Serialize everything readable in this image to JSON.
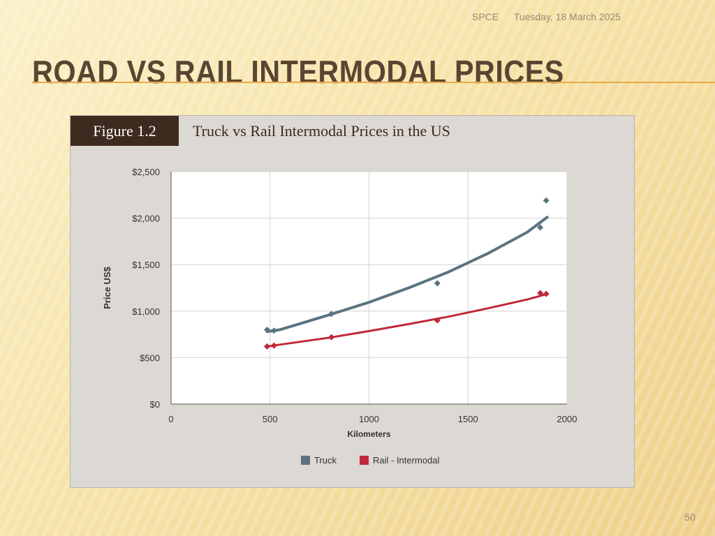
{
  "header": {
    "org": "SPCE",
    "date": "Tuesday, 18 March 2025"
  },
  "slide": {
    "title": "ROAD VS RAIL INTERMODAL PRICES",
    "page_number": "50"
  },
  "figure": {
    "label": "Figure 1.2",
    "title": "Truck vs Rail Intermodal Prices in the US"
  },
  "colors": {
    "truck": "#5b7380",
    "rail": "#c0283a",
    "figure_label_bg": "#3e2a1e"
  },
  "chart_data": {
    "type": "scatter",
    "title": "Truck vs Rail Intermodal Prices in the US",
    "xlabel": "Kilometers",
    "ylabel": "Price US$",
    "xlim": [
      0,
      2000
    ],
    "ylim": [
      0,
      2500
    ],
    "xticks": [
      0,
      500,
      1000,
      1500,
      2000
    ],
    "xtick_labels": [
      "0",
      "500",
      "1000",
      "1500",
      "2000"
    ],
    "yticks": [
      0,
      500,
      1000,
      1500,
      2000,
      2500
    ],
    "ytick_labels": [
      "$0",
      "$500",
      "$1,000",
      "$1,500",
      "$2,000",
      "$2,500"
    ],
    "grid": true,
    "legend_position": "bottom",
    "series": [
      {
        "name": "Truck",
        "color": "#5b7380",
        "points": [
          [
            485,
            800
          ],
          [
            520,
            790
          ],
          [
            810,
            970
          ],
          [
            1345,
            1300
          ],
          [
            1865,
            1900
          ],
          [
            1895,
            2190
          ]
        ],
        "trend": [
          [
            485,
            780
          ],
          [
            550,
            800
          ],
          [
            800,
            960
          ],
          [
            1000,
            1095
          ],
          [
            1200,
            1250
          ],
          [
            1400,
            1420
          ],
          [
            1600,
            1620
          ],
          [
            1800,
            1850
          ],
          [
            1900,
            2010
          ]
        ]
      },
      {
        "name": "Rail - Intermodal",
        "color": "#c0283a",
        "points": [
          [
            485,
            620
          ],
          [
            520,
            630
          ],
          [
            810,
            720
          ],
          [
            1345,
            900
          ],
          [
            1865,
            1195
          ],
          [
            1895,
            1185
          ]
        ],
        "trend": [
          [
            485,
            620
          ],
          [
            550,
            640
          ],
          [
            800,
            715
          ],
          [
            1000,
            785
          ],
          [
            1200,
            860
          ],
          [
            1400,
            940
          ],
          [
            1600,
            1030
          ],
          [
            1800,
            1125
          ],
          [
            1900,
            1185
          ]
        ]
      }
    ]
  }
}
